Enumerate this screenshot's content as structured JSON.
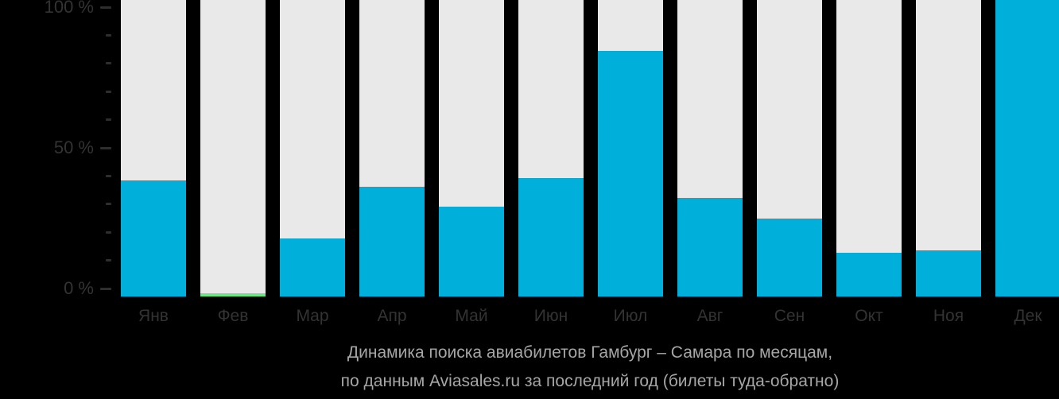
{
  "chart_data": {
    "type": "bar",
    "title": "Динамика поиска авиабилетов Гамбург – Самара по месяцам,",
    "subtitle": "по данным Aviasales.ru за последний год (билеты туда-обратно)",
    "categories": [
      "Янв",
      "Фев",
      "Мар",
      "Апр",
      "Май",
      "Июн",
      "Июл",
      "Авг",
      "Сен",
      "Окт",
      "Ноя",
      "Дек"
    ],
    "values": [
      40,
      1,
      20,
      38,
      31,
      41,
      85,
      34,
      27,
      15,
      16,
      100
    ],
    "unit": "%",
    "ylim": [
      0,
      100
    ],
    "highlight_index": 1,
    "highlight_meaning": "month with minimum value shown in green",
    "y_axis": {
      "minor_tick_step": 10,
      "major_ticks": [
        {
          "value": 100,
          "label": "100 %"
        },
        {
          "value": 50,
          "label": "50 %"
        },
        {
          "value": 0,
          "label": "0 %"
        }
      ]
    },
    "legend": "none",
    "grid": "off",
    "colors": {
      "background": "#000000",
      "bar_track": "#e9e9e9",
      "bar_fill": "#00b0db",
      "highlight_fill": "#69e784",
      "axis_text": "#333333",
      "tick_mark": "#2e2e2e",
      "caption_text": "#a6a6a6"
    }
  }
}
